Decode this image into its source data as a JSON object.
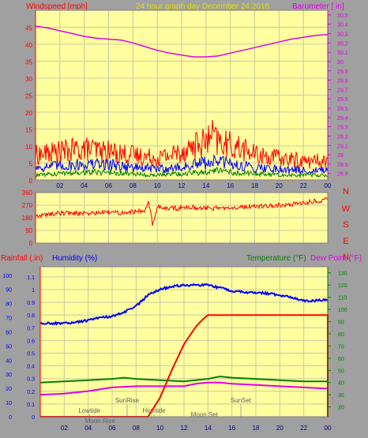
{
  "header": {
    "windspeed_label": "Windspeed [mph]",
    "title": "24 hour graph day   December 24 2016",
    "barometer_label": "Barometer [ in]"
  },
  "colors": {
    "background": "#a0a0a0",
    "plot_bg": "#ffffa0",
    "grid": "#c8c8a0",
    "wind_gust": "#ff0000",
    "wind_speed": "#0000ff",
    "wind_avg": "#008000",
    "barometer": "#e000e0",
    "direction": "#ff0000",
    "rain": "#ff0000",
    "humidity": "#0000ff",
    "temperature": "#008000",
    "dewpoint": "#e000e0",
    "title": "#e0e000",
    "tick_dark": "#000080"
  },
  "chart_data": [
    {
      "id": "wind",
      "type": "line",
      "x_ticks": [
        "02",
        "04",
        "06",
        "08",
        "10",
        "12",
        "14",
        "16",
        "18",
        "20",
        "22",
        "00"
      ],
      "y_left": {
        "label": "Windspeed [mph]",
        "ticks": [
          "0",
          "5",
          "10",
          "15",
          "20",
          "25",
          "30",
          "35",
          "40",
          "45"
        ],
        "lim": [
          0,
          50
        ]
      },
      "y_right": {
        "label": "Barometer [ in]",
        "ticks": [
          "28.8",
          "28.9",
          "29",
          "29.1",
          "29.2",
          "29.3",
          "29.4",
          "29.5",
          "29.6",
          "29.7",
          "29.8",
          "29.9",
          "30",
          "30.1",
          "30.2",
          "30.3",
          "30.4",
          "30.5"
        ],
        "lim": [
          28.73,
          30.55
        ]
      },
      "series": [
        {
          "name": "Barometer",
          "axis": "right",
          "x": [
            0,
            1,
            2,
            3,
            4,
            5,
            6,
            7,
            8,
            9,
            10,
            11,
            12,
            13,
            14,
            15,
            16,
            17,
            18,
            19,
            20,
            21,
            22,
            23,
            24
          ],
          "y": [
            30.38,
            30.36,
            30.33,
            30.3,
            30.27,
            30.25,
            30.24,
            30.23,
            30.2,
            30.16,
            30.12,
            30.09,
            30.07,
            30.05,
            30.05,
            30.06,
            30.09,
            30.12,
            30.15,
            30.18,
            30.21,
            30.24,
            30.26,
            30.28,
            30.29
          ]
        },
        {
          "name": "Gust",
          "axis": "left",
          "x": [
            0,
            2,
            4,
            6,
            8,
            10,
            11,
            12,
            13,
            14,
            14.5,
            15,
            16,
            17,
            18,
            20,
            22,
            24
          ],
          "y": [
            8,
            9,
            10,
            9,
            8,
            7,
            8,
            9,
            11,
            12,
            14,
            12,
            11,
            10,
            8,
            7,
            6,
            6
          ]
        },
        {
          "name": "Speed",
          "axis": "left",
          "x": [
            0,
            2,
            4,
            6,
            8,
            10,
            12,
            14,
            15,
            16,
            18,
            20,
            22,
            24
          ],
          "y": [
            4,
            4.5,
            5,
            5,
            4,
            3.5,
            4,
            5.5,
            6,
            5,
            4,
            3.5,
            3,
            3
          ]
        },
        {
          "name": "Average",
          "axis": "left",
          "x": [
            0,
            2,
            4,
            6,
            8,
            10,
            12,
            14,
            15,
            16,
            18,
            20,
            22,
            24
          ],
          "y": [
            1.5,
            2,
            2.5,
            2.5,
            2,
            1.5,
            2,
            2.5,
            3,
            2.5,
            2,
            1.5,
            1.5,
            1.5
          ]
        }
      ]
    },
    {
      "id": "direction",
      "type": "line",
      "x_ticks": [
        "02",
        "04",
        "06",
        "08",
        "10",
        "12",
        "14",
        "16",
        "18",
        "20",
        "22",
        "00"
      ],
      "y_left": {
        "ticks": [
          "0",
          "90",
          "180",
          "270",
          "360"
        ],
        "lim": [
          0,
          360
        ]
      },
      "y_right_labels": [
        "N",
        "W",
        "S",
        "E",
        "N"
      ],
      "series": [
        {
          "name": "Direction",
          "x": [
            0,
            1,
            2,
            3,
            4,
            5,
            6,
            7,
            8,
            9,
            9.3,
            9.6,
            10,
            11,
            12,
            13,
            14,
            15,
            16,
            17,
            18,
            19,
            20,
            21,
            22,
            23,
            24
          ],
          "y": [
            190,
            205,
            215,
            215,
            210,
            215,
            220,
            218,
            225,
            230,
            290,
            140,
            255,
            245,
            250,
            255,
            250,
            245,
            260,
            255,
            260,
            265,
            270,
            275,
            285,
            300,
            310
          ]
        }
      ]
    },
    {
      "id": "rain-humidity-temp",
      "type": "line",
      "x_ticks": [
        "02",
        "04",
        "06",
        "08",
        "10",
        "12",
        "14",
        "16",
        "18",
        "20",
        "22",
        "00"
      ],
      "labels": {
        "rainfall": "Rainfall (.in)",
        "humidity": "Humidity (%)",
        "temperature": "Temperature (°F)",
        "dewpoint": "Dew Point (°F)"
      },
      "y_rain": {
        "ticks": [
          "0",
          "0.1",
          "0.2",
          "0.3",
          "0.4",
          "0.5",
          "0.6",
          "0.7",
          "0.8",
          "0.9",
          "1",
          "1.1"
        ],
        "lim": [
          0,
          1.18
        ]
      },
      "y_hum": {
        "ticks": [
          "0",
          "10",
          "20",
          "30",
          "40",
          "50",
          "60",
          "70",
          "80",
          "90",
          "100"
        ],
        "lim": [
          0,
          106
        ]
      },
      "y_temp": {
        "ticks": [
          "20",
          "30",
          "40",
          "50",
          "60",
          "70",
          "80",
          "90",
          "100",
          "110",
          "120",
          "130"
        ],
        "lim": [
          12,
          135
        ]
      },
      "series": [
        {
          "name": "Humidity",
          "axis": "hum",
          "x": [
            0,
            1,
            2,
            3,
            4,
            5,
            6,
            7,
            8,
            9,
            10,
            11,
            12,
            13,
            14,
            15,
            16,
            17,
            18,
            19,
            20,
            21,
            22,
            23,
            24
          ],
          "y": [
            66,
            66,
            66,
            67,
            68,
            70,
            71,
            74,
            78,
            86,
            90,
            92,
            93,
            93,
            93,
            91,
            89,
            88,
            88,
            87,
            86,
            84,
            82,
            82,
            83
          ]
        },
        {
          "name": "Rainfall",
          "axis": "rain",
          "x": [
            0,
            9,
            10,
            11,
            12,
            12.5,
            13,
            13.5,
            14,
            24,
            24
          ],
          "y": [
            0,
            0,
            0.15,
            0.37,
            0.57,
            0.64,
            0.71,
            0.76,
            0.8,
            0.8,
            0
          ]
        },
        {
          "name": "Temperature",
          "axis": "temp",
          "x": [
            0,
            2,
            4,
            6,
            7,
            8,
            10,
            12,
            14,
            15,
            16,
            18,
            20,
            22,
            24
          ],
          "y": [
            40,
            41,
            42,
            43,
            44,
            43,
            42,
            41,
            43,
            45,
            44,
            43,
            42,
            41,
            41
          ]
        },
        {
          "name": "Dew Point",
          "axis": "temp",
          "x": [
            0,
            2,
            4,
            6,
            8,
            10,
            12,
            13,
            14,
            15,
            16,
            18,
            20,
            22,
            24
          ],
          "y": [
            30,
            31,
            33,
            36,
            37,
            37,
            37,
            39,
            40,
            40,
            39,
            38,
            37,
            36,
            35
          ]
        }
      ],
      "annotations": [
        {
          "text": "Lowtide",
          "x": 4.1
        },
        {
          "text": "Moon Rise",
          "x": 5.0
        },
        {
          "text": "SunRise",
          "x": 7.25
        },
        {
          "text": "Hightide",
          "x": 9.5
        },
        {
          "text": "Moon Set",
          "x": 13.7
        },
        {
          "text": "SunSet",
          "x": 16.75
        }
      ]
    }
  ]
}
